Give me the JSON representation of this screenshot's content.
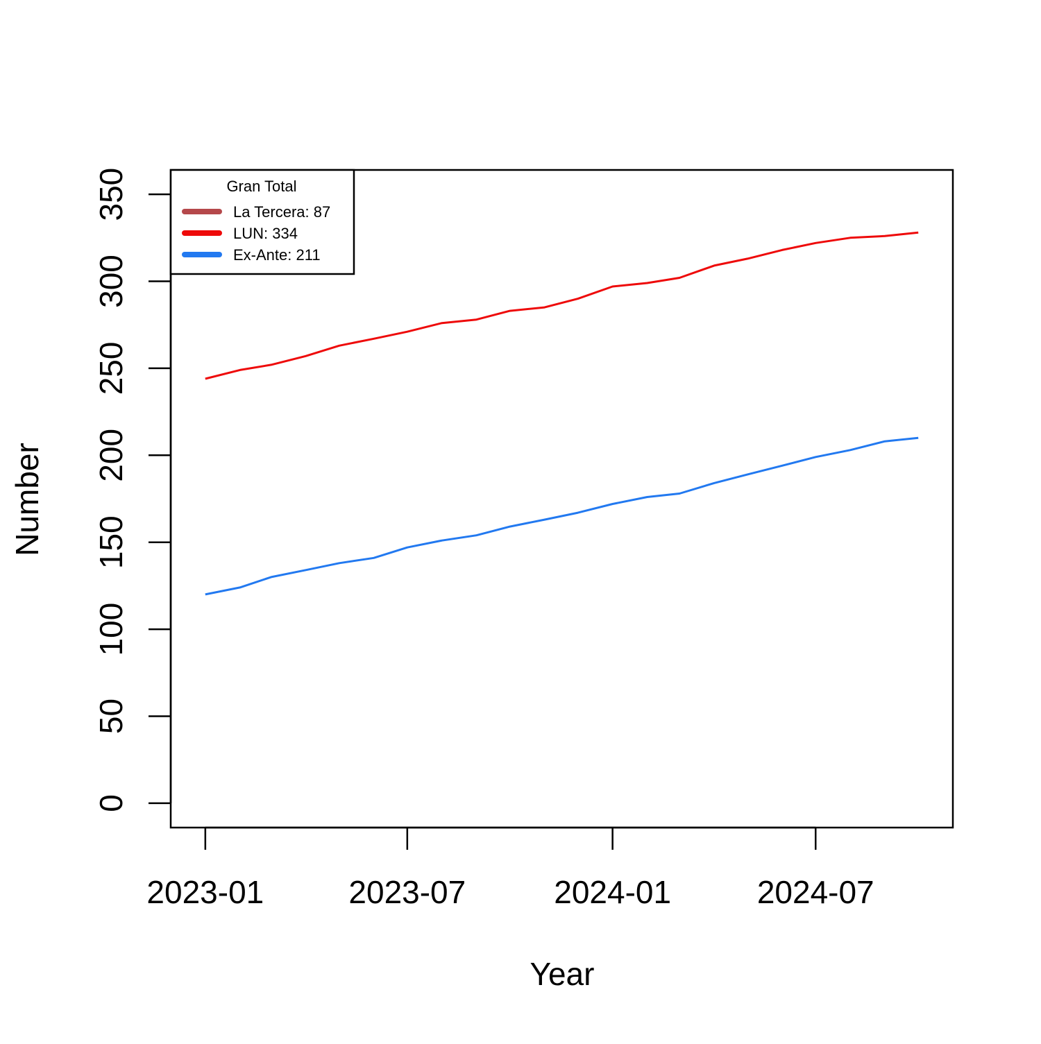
{
  "chart_data": {
    "type": "line",
    "x_label": "Year",
    "y_label": "Number",
    "legend_title": "Gran Total",
    "legend_position": "top-left",
    "x": [
      "2023-01",
      "2023-02",
      "2023-03",
      "2023-04",
      "2023-05",
      "2023-06",
      "2023-07",
      "2023-08",
      "2023-09",
      "2023-10",
      "2023-11",
      "2023-12",
      "2024-01",
      "2024-02",
      "2024-03",
      "2024-04",
      "2024-05",
      "2024-06",
      "2024-07",
      "2024-08",
      "2024-09",
      "2024-10"
    ],
    "series": [
      {
        "name": "La Tercera: 87",
        "color": "#b5484b",
        "values": [
          null,
          null,
          null,
          null,
          null,
          null,
          null,
          null,
          null,
          null,
          null,
          null,
          null,
          null,
          null,
          null,
          null,
          null,
          null,
          null,
          null,
          null
        ]
      },
      {
        "name": "LUN: 334",
        "color": "#ee0a0a",
        "values": [
          244,
          249,
          252,
          257,
          263,
          267,
          271,
          276,
          278,
          283,
          285,
          290,
          297,
          299,
          302,
          309,
          313,
          318,
          322,
          325,
          326,
          328
        ]
      },
      {
        "name": "Ex-Ante: 211",
        "color": "#2279f0",
        "values": [
          120,
          124,
          130,
          134,
          138,
          141,
          147,
          151,
          154,
          159,
          163,
          167,
          172,
          176,
          178,
          184,
          189,
          194,
          199,
          203,
          208,
          210
        ]
      }
    ],
    "xlim": [
      "2022-12",
      "2024-11"
    ],
    "xticks": [
      "2023-01",
      "2023-07",
      "2024-01",
      "2024-07"
    ],
    "ylim": [
      -14,
      364
    ],
    "yticks": [
      0,
      50,
      100,
      150,
      200,
      250,
      300,
      350
    ],
    "grid": false
  }
}
